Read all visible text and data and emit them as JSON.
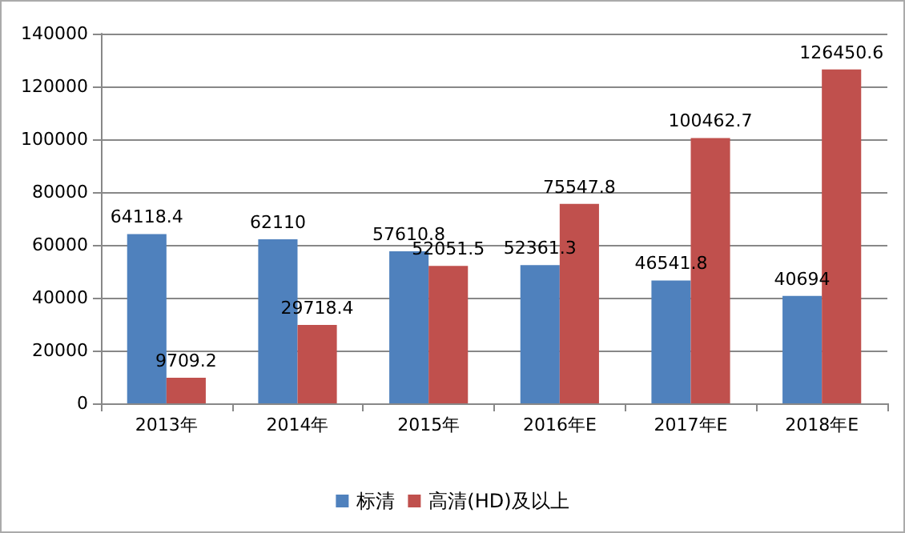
{
  "chart_data": {
    "type": "bar",
    "categories": [
      "2013年",
      "2014年",
      "2015年",
      "2016年E",
      "2017年E",
      "2018年E"
    ],
    "series": [
      {
        "name": "标清",
        "color": "#4f81bd",
        "values": [
          64118.4,
          62110,
          57610.8,
          52361.3,
          46541.8,
          40694
        ]
      },
      {
        "name": "高清(HD)及以上",
        "color": "#c0504d",
        "values": [
          9709.2,
          29718.4,
          52051.5,
          75547.8,
          100462.7,
          126450.6
        ]
      }
    ],
    "ylim": [
      0,
      140000
    ],
    "yticks": [
      0,
      20000,
      40000,
      60000,
      80000,
      100000,
      120000,
      140000
    ],
    "grid": "y",
    "legend": "bottom",
    "data_labels": true
  }
}
